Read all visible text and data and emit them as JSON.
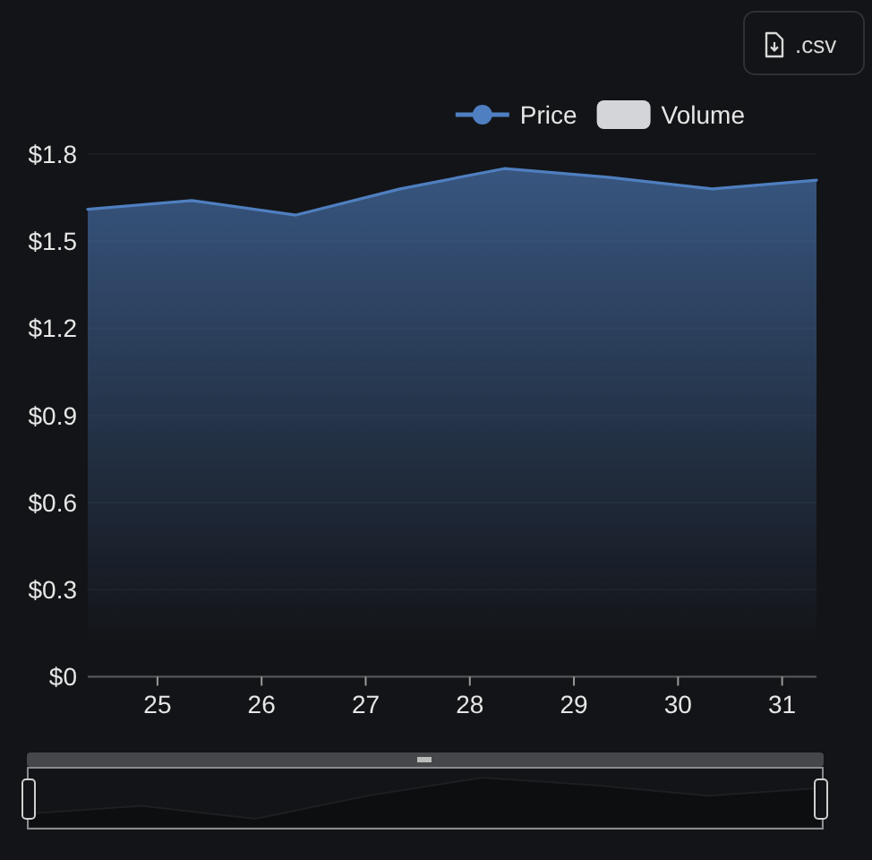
{
  "chart_data": {
    "type": "area",
    "x": [
      24.33,
      25.33,
      26.33,
      27.33,
      28.33,
      29.33,
      30.33,
      31.33
    ],
    "series": [
      {
        "name": "Price",
        "color": "#4f7fc0",
        "values": [
          1.61,
          1.64,
          1.59,
          1.68,
          1.75,
          1.72,
          1.68,
          1.71
        ]
      },
      {
        "name": "Volume",
        "type": "bar",
        "color": "#d4d5d9",
        "values": [
          null,
          null,
          null,
          null,
          null,
          null,
          null,
          null
        ]
      }
    ],
    "xlim": [
      24.33,
      31.33
    ],
    "xticks": [
      25,
      26,
      27,
      28,
      29,
      30,
      31
    ],
    "ylim": [
      0,
      1.8
    ],
    "yticks": [
      {
        "value": 0,
        "label": "$0"
      },
      {
        "value": 0.3,
        "label": "$0.3"
      },
      {
        "value": 0.6,
        "label": "$0.6"
      },
      {
        "value": 0.9,
        "label": "$0.9"
      },
      {
        "value": 1.2,
        "label": "$1.2"
      },
      {
        "value": 1.5,
        "label": "$1.5"
      },
      {
        "value": 1.8,
        "label": "$1.8"
      }
    ],
    "grid": "y",
    "legend": "top right",
    "annotations": [
      ".csv"
    ]
  }
}
